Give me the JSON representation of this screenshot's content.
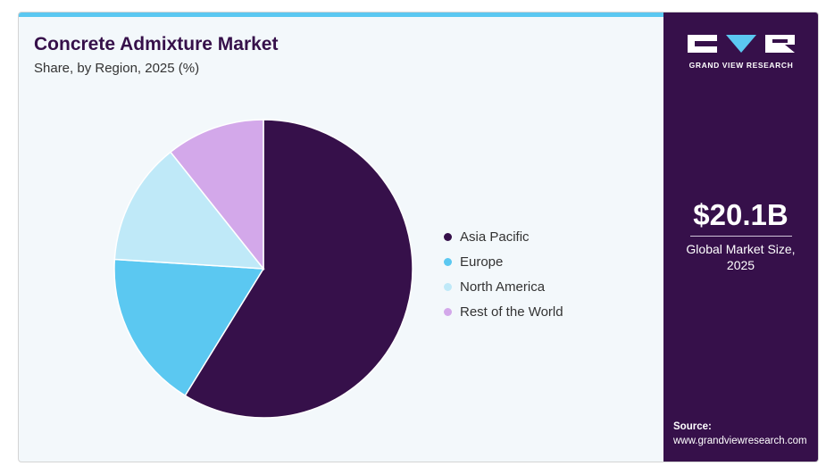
{
  "header": {
    "title": "Concrete Admixture Market",
    "subtitle": "Share, by Region, 2025 (%)"
  },
  "chart_data": {
    "type": "pie",
    "title": "Concrete Admixture Market",
    "subtitle": "Share, by Region, 2025 (%)",
    "categories": [
      "Asia Pacific",
      "Europe",
      "North America",
      "Rest of the World"
    ],
    "values": [
      58.8,
      17.2,
      13.3,
      10.7
    ],
    "colors": [
      "#36104a",
      "#5bc8f1",
      "#bfe9f8",
      "#d3a8ea"
    ],
    "legend_position": "right",
    "start_angle": "12 o'clock",
    "direction": "clockwise"
  },
  "sidebar": {
    "brand": "GRAND VIEW RESEARCH",
    "market_size_value": "$20.1B",
    "market_size_label": "Global Market Size, 2025",
    "source_label": "Source:",
    "source_url": "www.grandviewresearch.com"
  },
  "colors": {
    "accent_bar": "#5bc8f1",
    "sidebar_bg": "#36104a",
    "panel_bg": "#f3f8fb"
  }
}
